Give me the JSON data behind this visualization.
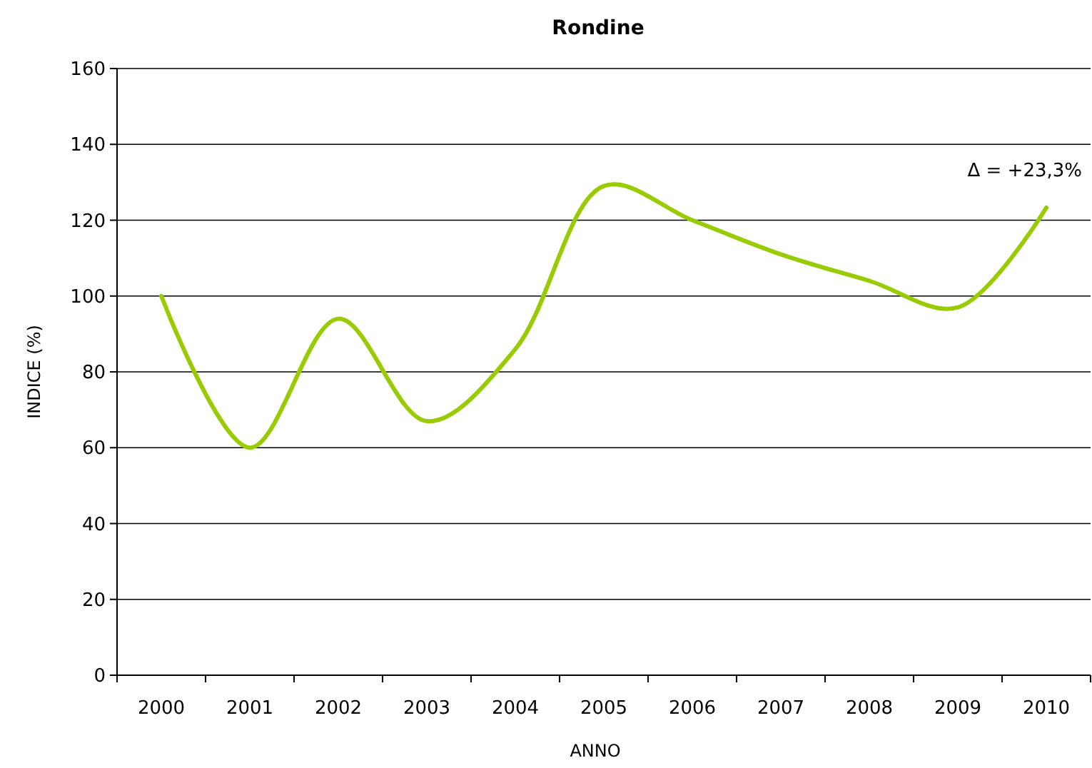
{
  "chart_data": {
    "type": "line",
    "title": "Rondine",
    "xlabel": "ANNO",
    "ylabel": "INDICE (%)",
    "categories": [
      "2000",
      "2001",
      "2002",
      "2003",
      "2004",
      "2005",
      "2006",
      "2007",
      "2008",
      "2009",
      "2010"
    ],
    "series": [
      {
        "color": "#99cc00",
        "values": [
          100,
          60,
          94,
          67,
          86,
          129,
          120,
          111,
          104,
          97,
          123.3
        ]
      }
    ],
    "ylim": [
      0,
      160
    ],
    "yticks": [
      0,
      20,
      40,
      60,
      80,
      100,
      120,
      140,
      160
    ],
    "grid": "y",
    "line_style": "solid",
    "marker": "none",
    "annotations": [
      {
        "text": "Δ = +23,3%",
        "x": "2010",
        "y": 123.3
      }
    ]
  }
}
